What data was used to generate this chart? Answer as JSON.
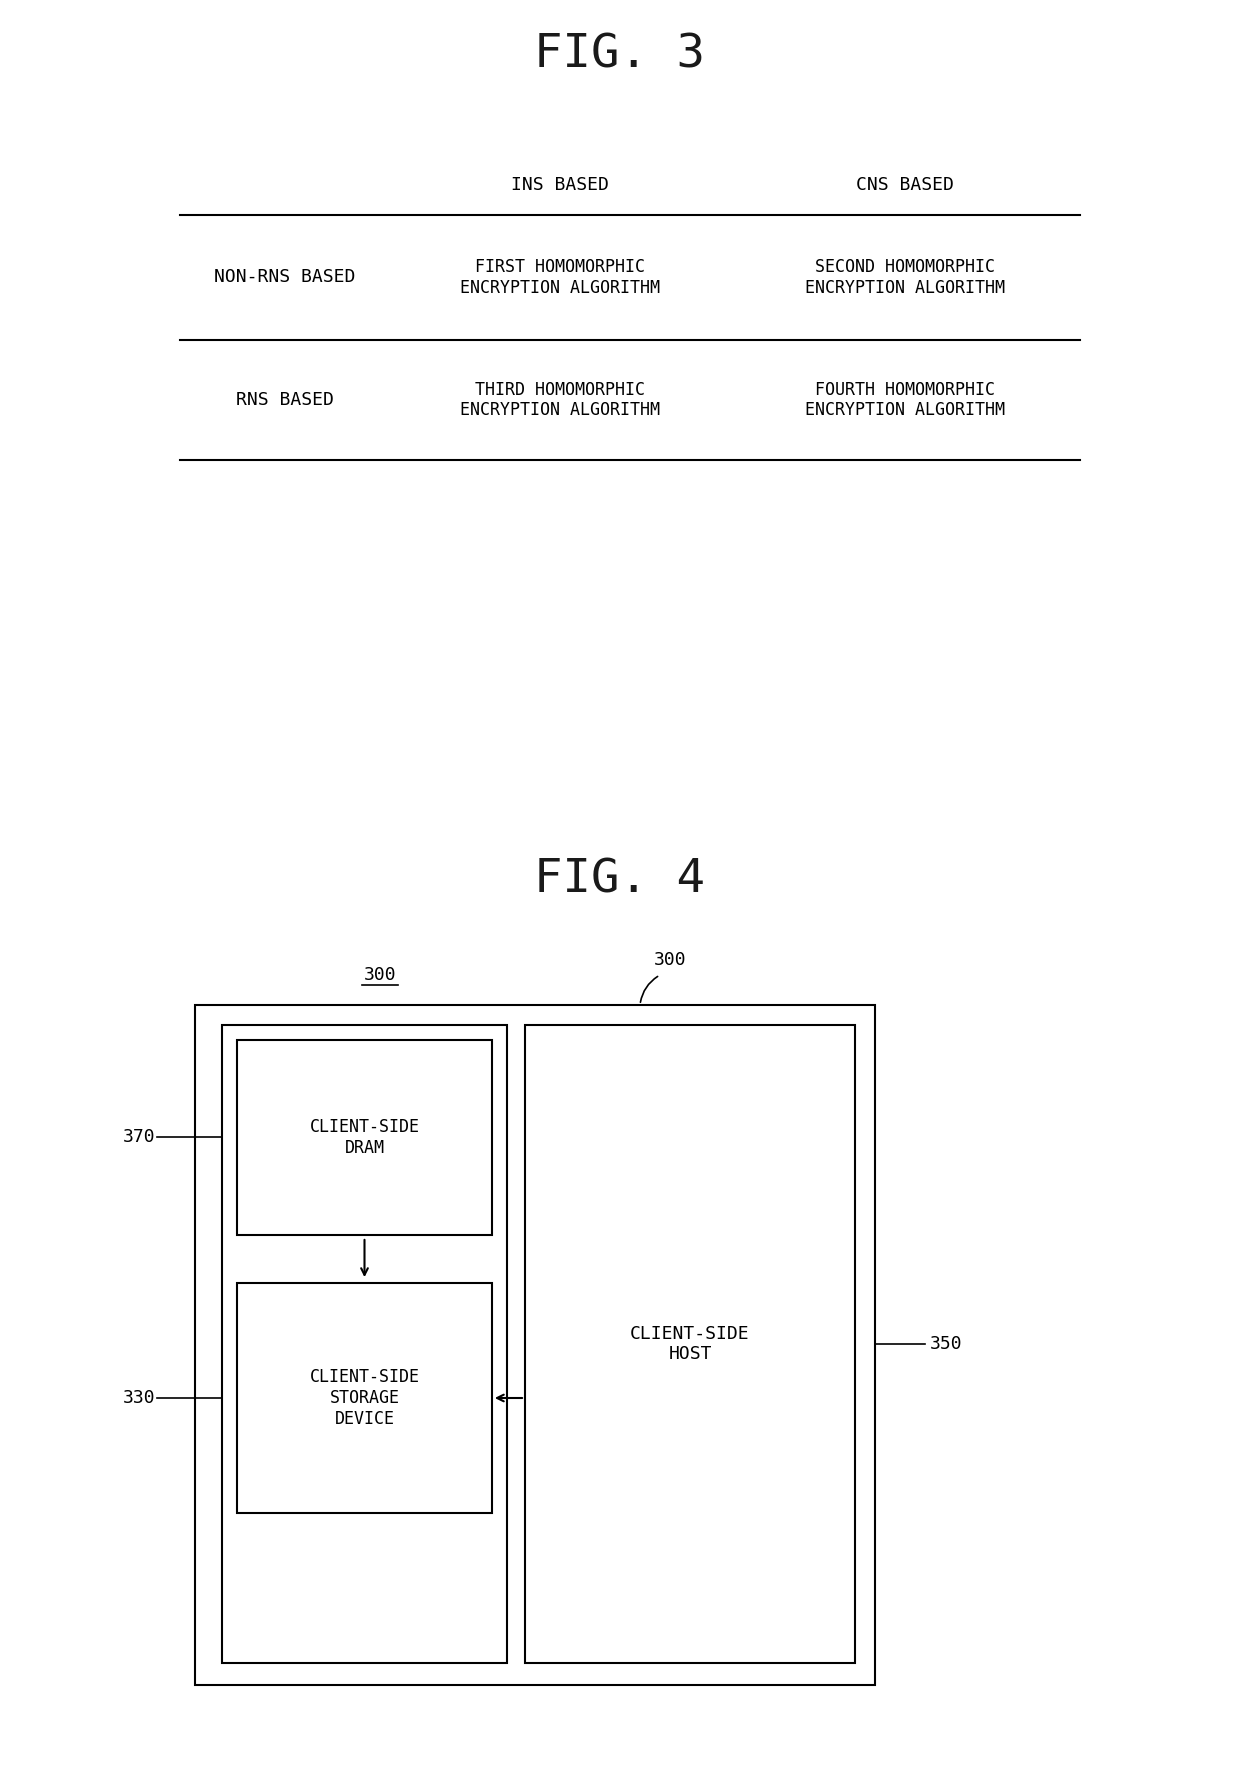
{
  "fig3_title": "FIG. 3",
  "fig4_title": "FIG. 4",
  "table_header_col1": "INS BASED",
  "table_header_col2": "CNS BASED",
  "table_row1_label": "NON-RNS BASED",
  "table_row1_col1": "FIRST HOMOMORPHIC\nENCRYPTION ALGORITHM",
  "table_row1_col2": "SECOND HOMOMORPHIC\nENCRYPTION ALGORITHM",
  "table_row2_label": "RNS BASED",
  "table_row2_col1": "THIRD HOMOMORPHIC\nENCRYPTION ALGORITHM",
  "table_row2_col2": "FOURTH HOMOMORPHIC\nENCRYPTION ALGORITHM",
  "label_300_left": "300",
  "label_300_right": "300",
  "box_dram_label": "CLIENT-SIDE\nDRAM",
  "box_storage_label": "CLIENT-SIDE\nSTORAGE\nDEVICE",
  "box_host_label": "CLIENT-SIDE\nHOST",
  "ref_370": "370",
  "ref_330": "330",
  "ref_350": "350",
  "bg_color": "#ffffff",
  "text_color": "#000000",
  "line_color": "#000000"
}
